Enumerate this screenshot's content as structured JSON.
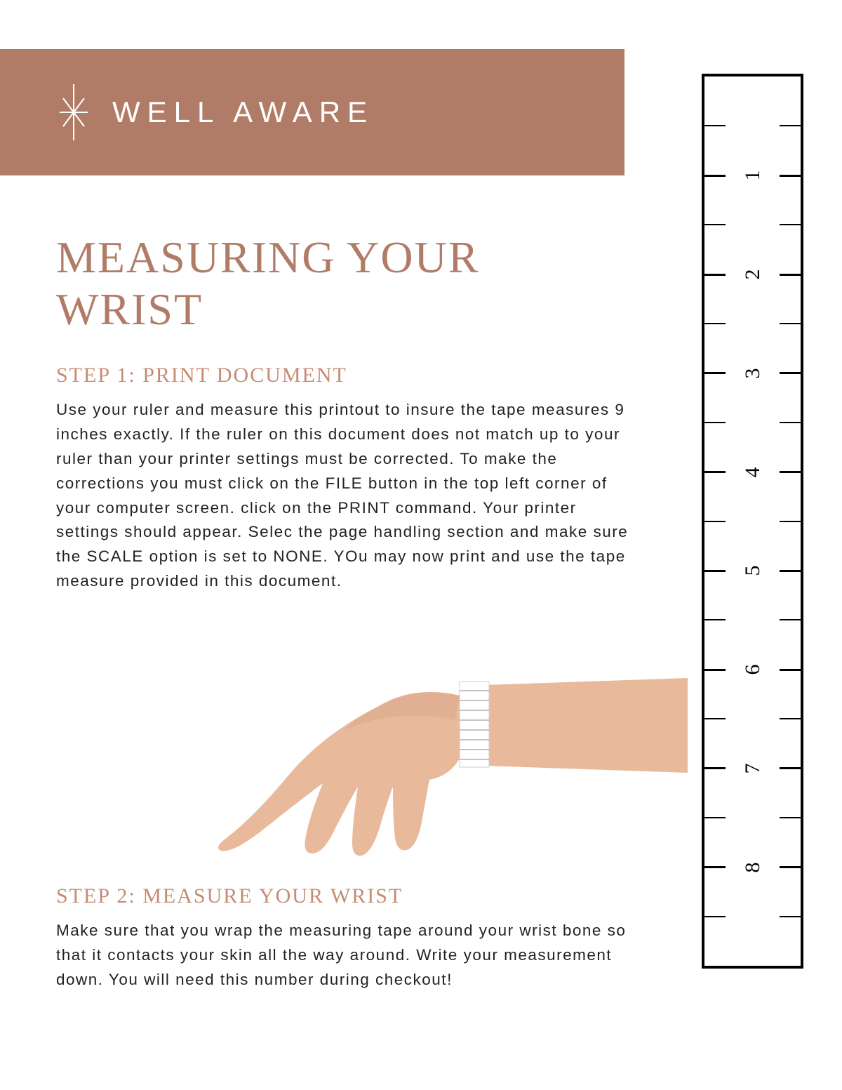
{
  "brand": {
    "name": "WELL AWARE"
  },
  "page": {
    "title": "MEASURING YOUR WRIST",
    "accent_color": "#b17c67",
    "step1": {
      "heading": "STEP 1: PRINT DOCUMENT",
      "body": "Use your ruler and measure this printout to insure the tape measures 9 inches exactly. If the ruler on this document does not match up to your ruler than your printer settings must be corrected. To make the corrections you must click on the FILE button in the top left corner of your computer screen. click on the PRINT command. Your printer settings should appear. Selec the page handling section and make sure the SCALE option is set to NONE. YOu may now print and use the tape measure provided in this document."
    },
    "step2": {
      "heading": "STEP 2: MEASURE YOUR WRIST",
      "body": "Make sure that you wrap the measuring tape around your wrist bone so that it contacts your skin all the way around. Write your measurement down. You will need this number during checkout!"
    }
  },
  "ruler": {
    "total_inches": 9,
    "major_labels": [
      "1",
      "2",
      "3",
      "4",
      "5",
      "6",
      "7",
      "8"
    ],
    "border_color": "#000000",
    "tick_color": "#000000",
    "label_fontsize": 30
  },
  "illustration": {
    "skin_color": "#e9b99b",
    "shadow_color": "#d9a587",
    "tape_color": "#ffffff"
  }
}
